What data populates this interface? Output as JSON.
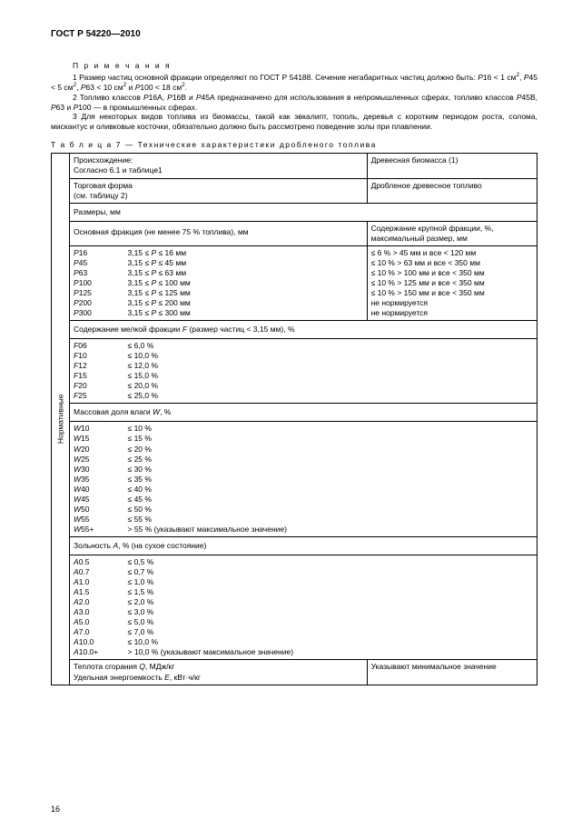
{
  "header": "ГОСТ  Р   54220—2010",
  "notesTitle": "П р и м е ч а н и я",
  "notes": [
    "1 Размер частиц основной фракции определяют по ГОСТ Р 54188. Сечение негабаритных частиц должно быть: P16 < 1 см², P45 < 5 см², P63 < 10 см² и P100 < 18 см².",
    "2 Топливо классов P16A, P16B и P45A предназначено для использования в непромышленных сферах, топливо классов P45B, P63 и P100  — в промышленных сферах.",
    "3 Для некоторых видов топлива из биомассы, такой как эвкалипт, тополь, деревья с коротким периодом роста, солома, мискантус и оливковые косточки, обязательно должно быть рассмотрено поведение золы при плавлении."
  ],
  "tableTitle": "Т а б л и ц а   7 — Технические характеристики дробленого топлива",
  "vertLabel": "Нормативные",
  "originLabel": "Происхождение:\nСогласно 6.1 и таблице1",
  "originValue": "Древесная биомасса (1)",
  "tradeFormLabel": "Торговая форма\n(см. таблицу 2)",
  "tradeFormValue": "Дробленое древесное топливо",
  "dimensionsLabel": "Размеры, мм",
  "mainFractionLabel": "Основная фракция  (не менее 75 % топлива), мм",
  "coarseLabel": "Содержание крупной фракции, %,\nмаксимальный размер, мм",
  "sizeRows": [
    {
      "c": "P16",
      "r": "3,15 ≤ P ≤ 16 мм",
      "f": "≤ 6 % > 45 мм и все < 120 мм"
    },
    {
      "c": "P45",
      "r": "3,15 ≤ P ≤ 45 мм",
      "f": "≤ 10 % > 63 мм и все < 350 мм"
    },
    {
      "c": "P63",
      "r": "3,15 ≤ P ≤ 63 мм",
      "f": "≤ 10 % > 100 мм и все < 350 мм"
    },
    {
      "c": "P100",
      "r": "3,15 ≤ P ≤ 100 мм",
      "f": "≤ 10 % > 125 мм и все < 350 мм"
    },
    {
      "c": "P125",
      "r": "3,15 ≤ P ≤ 125 мм",
      "f": "≤ 10 % > 150 мм и все < 350 мм"
    },
    {
      "c": "P200",
      "r": "3,15 ≤ P ≤ 200 мм",
      "f": "не нормируется"
    },
    {
      "c": "P300",
      "r": "3,15 ≤ P ≤ 300 мм",
      "f": "не нормируется"
    }
  ],
  "finesLabel": "Содержание мелкой фракции F (размер частиц < 3,15 мм), %",
  "finesRows": [
    {
      "c": "F06",
      "v": "≤ 6,0 %"
    },
    {
      "c": "F10",
      "v": "≤ 10,0 %"
    },
    {
      "c": "F12",
      "v": "≤ 12,0 %"
    },
    {
      "c": "F15",
      "v": "≤ 15,0 %"
    },
    {
      "c": "F20",
      "v": "≤ 20,0 %"
    },
    {
      "c": "F25",
      "v": "≤ 25,0 %"
    }
  ],
  "moistureLabel": "Массовая доля влаги W, %",
  "moistureRows": [
    {
      "c": "W10",
      "v": "≤ 10 %"
    },
    {
      "c": "W15",
      "v": "≤ 15 %"
    },
    {
      "c": "W20",
      "v": "≤ 20 %"
    },
    {
      "c": "W25",
      "v": "≤ 25 %"
    },
    {
      "c": "W30",
      "v": "≤ 30 %"
    },
    {
      "c": "W35",
      "v": "≤ 35 %"
    },
    {
      "c": "W40",
      "v": "≤ 40 %"
    },
    {
      "c": "W45",
      "v": "≤ 45 %"
    },
    {
      "c": "W50",
      "v": "≤ 50 %"
    },
    {
      "c": "W55",
      "v": "≤ 55 %"
    },
    {
      "c": "W55+",
      "v": "> 55 % (указывают максимальное значение)"
    }
  ],
  "ashLabel": "Зольность A, % (на сухое состояние)",
  "ashRows": [
    {
      "c": "A0.5",
      "v": "≤ 0,5 %"
    },
    {
      "c": "A0.7",
      "v": "≤ 0,7 %"
    },
    {
      "c": "A1.0",
      "v": "≤ 1,0 %"
    },
    {
      "c": "A1.5",
      "v": "≤ 1,5 %"
    },
    {
      "c": "A2.0",
      "v": "≤ 2,0 %"
    },
    {
      "c": "A3.0",
      "v": "≤ 3,0 %"
    },
    {
      "c": "A5.0",
      "v": "≤ 5,0 %"
    },
    {
      "c": "A7.0",
      "v": "≤ 7,0 %"
    },
    {
      "c": "A10.0",
      "v": "≤ 10,0 %"
    },
    {
      "c": "A10.0+",
      "v": "> 10,0 % (указывают максимальное значение)"
    }
  ],
  "heatingLabel": "Теплота сгорания Q, МДж/кг\nУдельная энергоемкость E, кВт·ч/кг",
  "heatingValue": "Указывают минимальное значение",
  "pageNum": "16"
}
